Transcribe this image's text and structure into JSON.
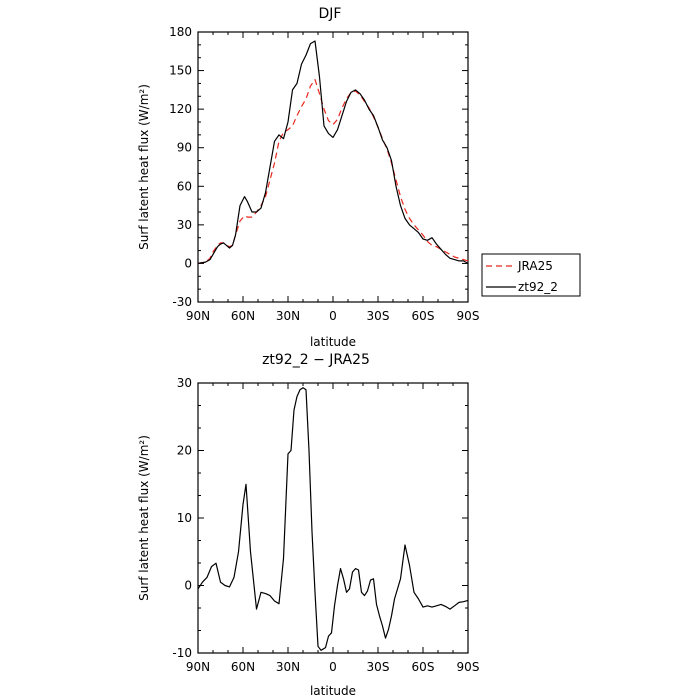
{
  "chart_data": [
    {
      "type": "line",
      "title": "DJF",
      "xlabel": "latitude",
      "ylabel": "Surf latent heat flux (W/m²)",
      "xlim": [
        90,
        -90
      ],
      "ylim": [
        -30,
        180
      ],
      "xticks": [
        90,
        60,
        30,
        0,
        -30,
        -60,
        -90
      ],
      "xtick_labels": [
        "90N",
        "60N",
        "30N",
        "0",
        "30S",
        "60S",
        "90S"
      ],
      "yticks": [
        -30,
        0,
        30,
        60,
        90,
        120,
        150,
        180
      ],
      "ytick_labels": [
        "-30",
        "0",
        "30",
        "60",
        "90",
        "120",
        "150",
        "180"
      ],
      "legend": {
        "placement": "right",
        "entries": [
          "JRA25",
          "zt92_2"
        ]
      },
      "series": [
        {
          "name": "JRA25",
          "color": "#e8281e",
          "dash": "dashed",
          "x": [
            90,
            85,
            82,
            80,
            77,
            75,
            73,
            71,
            69,
            67,
            65,
            62,
            59,
            57,
            54,
            51,
            48,
            45,
            42,
            39,
            36,
            33,
            30,
            27,
            24,
            21,
            18,
            15,
            12,
            9,
            6,
            3,
            0,
            -3,
            -6,
            -9,
            -12,
            -15,
            -18,
            -21,
            -24,
            -27,
            -30,
            -33,
            -36,
            -39,
            -42,
            -45,
            -48,
            -51,
            -54,
            -57,
            -60,
            -63,
            -66,
            -69,
            -72,
            -75,
            -78,
            -81,
            -84,
            -87,
            -90
          ],
          "y": [
            0,
            1,
            4,
            9,
            14,
            16,
            16,
            14,
            13,
            14,
            22,
            33,
            37,
            36,
            36,
            40,
            45,
            52,
            65,
            78,
            95,
            102,
            104,
            107,
            115,
            122,
            128,
            138,
            143,
            132,
            120,
            111,
            108,
            112,
            121,
            128,
            133,
            134,
            131,
            126,
            121,
            114,
            106,
            97,
            89,
            78,
            65,
            52,
            42,
            35,
            30,
            26,
            22,
            17,
            14,
            13,
            11,
            9,
            7,
            5,
            4,
            3,
            2
          ]
        },
        {
          "name": "zt92_2",
          "color": "#000000",
          "dash": "solid",
          "x": [
            90,
            85,
            82,
            80,
            77,
            75,
            73,
            71,
            69,
            67,
            65,
            62,
            59,
            57,
            54,
            51,
            48,
            45,
            42,
            39,
            36,
            33,
            30,
            27,
            24,
            21,
            18,
            15,
            12,
            9,
            6,
            3,
            0,
            -3,
            -6,
            -9,
            -12,
            -15,
            -18,
            -21,
            -24,
            -27,
            -30,
            -33,
            -36,
            -39,
            -42,
            -45,
            -48,
            -51,
            -54,
            -57,
            -60,
            -63,
            -66,
            -69,
            -72,
            -75,
            -78,
            -81,
            -84,
            -87,
            -90
          ],
          "y": [
            0,
            1,
            3,
            7,
            13,
            15,
            16,
            14,
            12,
            14,
            22,
            45,
            52,
            48,
            40,
            40,
            43,
            55,
            75,
            95,
            100,
            97,
            110,
            135,
            140,
            155,
            162,
            171,
            173,
            145,
            107,
            101,
            98,
            104,
            115,
            126,
            133,
            135,
            132,
            127,
            120,
            115,
            106,
            96,
            90,
            80,
            60,
            45,
            35,
            30,
            27,
            24,
            19,
            18,
            20,
            15,
            11,
            7,
            4,
            3,
            2,
            2,
            0
          ]
        }
      ]
    },
    {
      "type": "line",
      "title": "zt92_2 − JRA25",
      "xlabel": "latitude",
      "ylabel": "Surf latent heat flux (W/m²)",
      "xlim": [
        90,
        -90
      ],
      "ylim": [
        -10,
        30
      ],
      "xticks": [
        90,
        60,
        30,
        0,
        -30,
        -60,
        -90
      ],
      "xtick_labels": [
        "90N",
        "60N",
        "30N",
        "0",
        "30S",
        "60S",
        "90S"
      ],
      "yticks": [
        -10,
        0,
        10,
        20,
        30
      ],
      "ytick_labels": [
        "-10",
        "0",
        "10",
        "20",
        "30"
      ],
      "series": [
        {
          "color": "#000000",
          "dash": "solid",
          "x": [
            90,
            87,
            84,
            81,
            78,
            75,
            72,
            69,
            66,
            63,
            60,
            58,
            55,
            51,
            48,
            45,
            42,
            39,
            36,
            33,
            30,
            28,
            26,
            24,
            22,
            20,
            18,
            16,
            14,
            12,
            10,
            8,
            5,
            3,
            1,
            -1,
            -3,
            -5,
            -7,
            -9,
            -11,
            -13,
            -15,
            -17,
            -19,
            -21,
            -23,
            -25,
            -27,
            -29,
            -31,
            -33,
            -35,
            -37,
            -39,
            -41,
            -45,
            -48,
            -51,
            -54,
            -57,
            -60,
            -63,
            -66,
            -69,
            -72,
            -75,
            -78,
            -81,
            -84,
            -87,
            -90
          ],
          "y": [
            -0.5,
            0.5,
            1.2,
            2.8,
            3.3,
            0.5,
            0,
            -0.2,
            1.2,
            5,
            12,
            15,
            5,
            -3.5,
            -1,
            -1.2,
            -1.5,
            -2.3,
            -2.7,
            4,
            19.5,
            20,
            26,
            28,
            29,
            29.3,
            29,
            20,
            8,
            -1,
            -9,
            -9.6,
            -9.2,
            -7.5,
            -7,
            -3,
            0,
            2.5,
            1,
            -1,
            -0.5,
            2,
            2.5,
            2.3,
            -1,
            -1.5,
            -0.8,
            0.8,
            1,
            -2.8,
            -4.5,
            -6,
            -7.8,
            -6.5,
            -4.5,
            -2,
            1,
            6,
            3,
            -1,
            -2,
            -3.2,
            -3,
            -3.2,
            -3,
            -2.8,
            -3.1,
            -3.5,
            -3,
            -2.5,
            -2.4,
            -2.2
          ]
        }
      ]
    }
  ]
}
